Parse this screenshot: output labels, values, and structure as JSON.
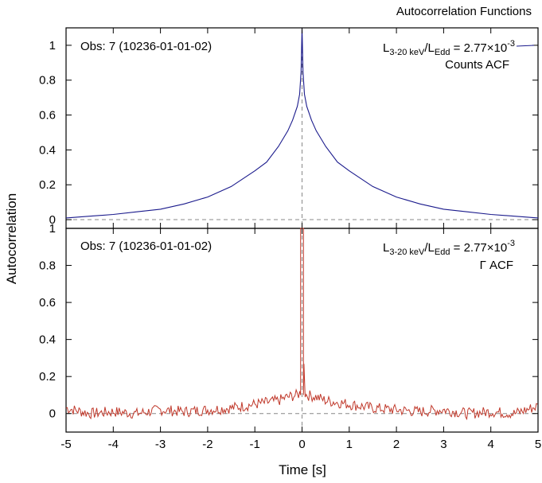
{
  "figure": {
    "title": "Autocorrelation Functions",
    "xlabel": "Time [s]",
    "ylabel": "Autocorrelation"
  },
  "top_panel": {
    "obs_label": "Obs: 7 (10236-01-01-02)",
    "lum": {
      "L": "L",
      "sub1": "3-20 keV",
      "slash": "/L",
      "sub2": "Edd",
      "eq": " = 2.77×10",
      "exp": "-3"
    },
    "acf_label": "Counts ACF"
  },
  "bottom_panel": {
    "obs_label": "Obs: 7 (10236-01-01-02)",
    "lum": {
      "L": "L",
      "sub1": "3-20 keV",
      "slash": "/L",
      "sub2": "Edd",
      "eq": " = 2.77×10",
      "exp": "-3"
    },
    "acf_label": "Γ ACF"
  },
  "chart_data": [
    {
      "type": "line",
      "panel": "top",
      "xlim": [
        -5,
        5
      ],
      "ylim": [
        -0.05,
        1.1
      ],
      "yticks": [
        "0",
        "0.2",
        "0.4",
        "0.6",
        "0.8",
        "1"
      ],
      "yticks_values": [
        0,
        0.2,
        0.4,
        0.6,
        0.8,
        1
      ],
      "color": "#1a1a8c",
      "reference_lines": {
        "x": 0,
        "y": 0,
        "style": "dashed",
        "color": "#888888"
      },
      "series": [
        {
          "x": [
            -5,
            -4.5,
            -4,
            -3.5,
            -3,
            -2.5,
            -2,
            -1.5,
            -1,
            -0.75,
            -0.5,
            -0.3,
            -0.2,
            -0.1,
            -0.05,
            -0.02,
            0,
            0.02,
            0.05,
            0.1,
            0.2,
            0.3,
            0.5,
            0.75,
            1,
            1.5,
            2,
            2.5,
            3,
            3.5,
            4,
            4.5,
            5
          ],
          "values": [
            0.01,
            0.02,
            0.03,
            0.045,
            0.06,
            0.09,
            0.13,
            0.19,
            0.28,
            0.33,
            0.42,
            0.51,
            0.57,
            0.65,
            0.72,
            0.85,
            1.1,
            0.85,
            0.72,
            0.65,
            0.57,
            0.51,
            0.42,
            0.33,
            0.28,
            0.19,
            0.13,
            0.09,
            0.06,
            0.045,
            0.03,
            0.02,
            0.01
          ]
        }
      ]
    },
    {
      "type": "line",
      "panel": "bottom",
      "xlim": [
        -5,
        5
      ],
      "ylim": [
        -0.1,
        1.0
      ],
      "xticks": [
        "-5",
        "-4",
        "-3",
        "-2",
        "-1",
        "0",
        "1",
        "2",
        "3",
        "4",
        "5"
      ],
      "xticks_values": [
        -5,
        -4,
        -3,
        -2,
        -1,
        0,
        1,
        2,
        3,
        4,
        5
      ],
      "yticks": [
        "0",
        "0.2",
        "0.4",
        "0.6",
        "0.8",
        "1"
      ],
      "yticks_values": [
        0,
        0.2,
        0.4,
        0.6,
        0.8,
        1
      ],
      "color": "#c0392b",
      "reference_lines": {
        "x": 0,
        "y": 0,
        "style": "dashed",
        "color": "#888888"
      },
      "series": [
        {
          "x": [
            -5,
            -4.5,
            -4,
            -3.5,
            -3,
            -2.5,
            -2,
            -1.5,
            -1,
            -0.5,
            -0.3,
            -0.1,
            -0.05,
            0,
            0.05,
            0.1,
            0.3,
            0.5,
            1,
            1.5,
            2,
            2.5,
            3,
            3.5,
            4,
            4.5,
            5
          ],
          "values": [
            0.03,
            0.0,
            0.01,
            0.0,
            0.02,
            0.01,
            0.02,
            0.03,
            0.05,
            0.07,
            0.09,
            0.1,
            0.11,
            1.0,
            0.11,
            0.1,
            0.09,
            0.07,
            0.05,
            0.03,
            0.02,
            0.01,
            0.02,
            0.0,
            0.01,
            0.0,
            0.04
          ]
        }
      ]
    }
  ]
}
